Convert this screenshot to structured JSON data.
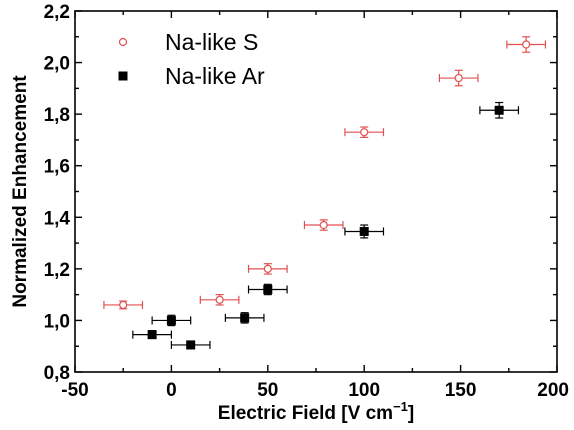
{
  "chart_data": {
    "type": "scatter",
    "xlabel": "Electric Field [V cm",
    "xlabel_sup": "−1",
    "xlabel_close": "]",
    "ylabel": "Normalized Enhancement",
    "xlim": [
      -50,
      200
    ],
    "ylim": [
      0.8,
      2.2
    ],
    "x_ticks": [
      -50,
      0,
      50,
      100,
      150,
      200
    ],
    "x_tick_labels": [
      "-50",
      "0",
      "50",
      "100",
      "150",
      "200"
    ],
    "y_ticks": [
      0.8,
      1.0,
      1.2,
      1.4,
      1.6,
      1.8,
      2.0,
      2.2
    ],
    "y_tick_labels": [
      "0,8",
      "1,0",
      "1,2",
      "1,4",
      "1,6",
      "1,8",
      "2,0",
      "2,2"
    ],
    "grid": false,
    "legend_position": "top-left",
    "series": [
      {
        "name": "Na-like S",
        "marker": "open-circle",
        "color": "#e05050",
        "points": [
          {
            "x": -25,
            "y": 1.06,
            "xerr": 10,
            "yerr": 0.015
          },
          {
            "x": 0,
            "y": 1.0,
            "xerr": 0,
            "yerr": 0.015
          },
          {
            "x": 25,
            "y": 1.08,
            "xerr": 10,
            "yerr": 0.02
          },
          {
            "x": 50,
            "y": 1.2,
            "xerr": 10,
            "yerr": 0.02
          },
          {
            "x": 79,
            "y": 1.37,
            "xerr": 10,
            "yerr": 0.02
          },
          {
            "x": 100,
            "y": 1.73,
            "xerr": 10,
            "yerr": 0.02
          },
          {
            "x": 149,
            "y": 1.94,
            "xerr": 10,
            "yerr": 0.03
          },
          {
            "x": 184,
            "y": 2.07,
            "xerr": 10,
            "yerr": 0.03
          }
        ]
      },
      {
        "name": "Na-like Ar",
        "marker": "filled-square",
        "color": "#000000",
        "points": [
          {
            "x": -10,
            "y": 0.945,
            "xerr": 10,
            "yerr": 0.015
          },
          {
            "x": 0,
            "y": 1.0,
            "xerr": 10,
            "yerr": 0.02
          },
          {
            "x": 10,
            "y": 0.905,
            "xerr": 10,
            "yerr": 0.015
          },
          {
            "x": 38,
            "y": 1.01,
            "xerr": 10,
            "yerr": 0.02
          },
          {
            "x": 50,
            "y": 1.12,
            "xerr": 10,
            "yerr": 0.02
          },
          {
            "x": 100,
            "y": 1.345,
            "xerr": 10,
            "yerr": 0.025
          },
          {
            "x": 170,
            "y": 1.815,
            "xerr": 10,
            "yerr": 0.03
          }
        ]
      }
    ]
  }
}
